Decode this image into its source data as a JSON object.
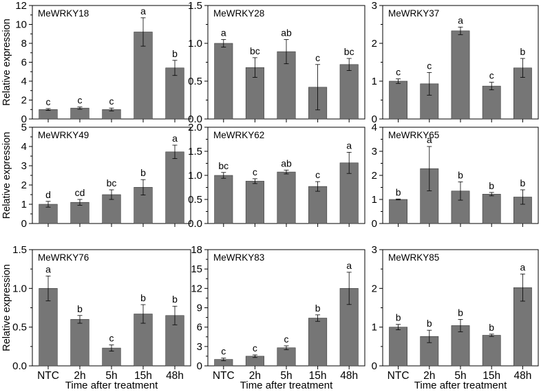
{
  "figure": {
    "ylabel": "Relative expression",
    "xlabel": "Time after treatment",
    "bar_color": "#767676"
  },
  "chart_data": [
    {
      "type": "bar",
      "title": "MeWRKY18",
      "categories": [
        "NTC",
        "2h",
        "5h",
        "15h",
        "48h"
      ],
      "values": [
        1.0,
        1.15,
        1.0,
        9.2,
        5.4
      ],
      "errors": [
        0.1,
        0.12,
        0.15,
        1.5,
        0.8
      ],
      "letters": [
        "c",
        "c",
        "c",
        "a",
        "b"
      ],
      "ylim": [
        0,
        12
      ],
      "yticks": [
        "0",
        "2",
        "4",
        "6",
        "8",
        "10",
        "12"
      ],
      "ylabel": "Relative expression",
      "xlabel": ""
    },
    {
      "type": "bar",
      "title": "MeWRKY28",
      "categories": [
        "NTC",
        "2h",
        "5h",
        "15h",
        "48h"
      ],
      "values": [
        1.0,
        0.68,
        0.89,
        0.42,
        0.72
      ],
      "errors": [
        0.05,
        0.13,
        0.16,
        0.3,
        0.08
      ],
      "letters": [
        "a",
        "bc",
        "ab",
        "c",
        "bc"
      ],
      "ylim": [
        0,
        1.5
      ],
      "yticks": [
        "0.0",
        "0.5",
        "1.0",
        "1.5"
      ],
      "ylabel": "",
      "xlabel": ""
    },
    {
      "type": "bar",
      "title": "MeWRKY37",
      "categories": [
        "NTC",
        "2h",
        "5h",
        "15h",
        "48h"
      ],
      "values": [
        1.0,
        0.93,
        2.33,
        0.87,
        1.35
      ],
      "errors": [
        0.06,
        0.3,
        0.1,
        0.1,
        0.25
      ],
      "letters": [
        "c",
        "c",
        "a",
        "c",
        "b"
      ],
      "ylim": [
        0,
        3
      ],
      "yticks": [
        "0",
        "1",
        "2",
        "3"
      ],
      "ylabel": "",
      "xlabel": ""
    },
    {
      "type": "bar",
      "title": "MeWRKY49",
      "categories": [
        "NTC",
        "2h",
        "5h",
        "15h",
        "48h"
      ],
      "values": [
        1.0,
        1.1,
        1.5,
        1.88,
        3.72
      ],
      "errors": [
        0.15,
        0.15,
        0.25,
        0.4,
        0.35
      ],
      "letters": [
        "d",
        "cd",
        "bc",
        "b",
        "a"
      ],
      "ylim": [
        0,
        5
      ],
      "yticks": [
        "0",
        "1",
        "2",
        "3",
        "4",
        "5"
      ],
      "ylabel": "Relative expression",
      "xlabel": ""
    },
    {
      "type": "bar",
      "title": "MeWRKY62",
      "categories": [
        "NTC",
        "2h",
        "5h",
        "15h",
        "48h"
      ],
      "values": [
        1.0,
        0.88,
        1.07,
        0.77,
        1.26
      ],
      "errors": [
        0.06,
        0.05,
        0.04,
        0.1,
        0.22
      ],
      "letters": [
        "bc",
        "c",
        "ab",
        "c",
        "a"
      ],
      "ylim": [
        0,
        2.0
      ],
      "yticks": [
        "0.0",
        "0.5",
        "1.0",
        "1.5",
        "2.0"
      ],
      "ylabel": "",
      "xlabel": ""
    },
    {
      "type": "bar",
      "title": "MeWRKY65",
      "categories": [
        "NTC",
        "2h",
        "5h",
        "15h",
        "48h"
      ],
      "values": [
        1.0,
        2.28,
        1.35,
        1.22,
        1.1
      ],
      "errors": [
        0.02,
        0.92,
        0.38,
        0.07,
        0.3
      ],
      "letters": [
        "b",
        "a",
        "b",
        "b",
        "b"
      ],
      "ylim": [
        0,
        4
      ],
      "yticks": [
        "0",
        "1",
        "2",
        "3",
        "4"
      ],
      "ylabel": "",
      "xlabel": ""
    },
    {
      "type": "bar",
      "title": "MeWRKY76",
      "categories": [
        "NTC",
        "2h",
        "5h",
        "15h",
        "48h"
      ],
      "values": [
        1.0,
        0.6,
        0.23,
        0.67,
        0.65
      ],
      "errors": [
        0.16,
        0.05,
        0.04,
        0.12,
        0.12
      ],
      "letters": [
        "a",
        "b",
        "c",
        "b",
        "b"
      ],
      "ylim": [
        0,
        1.5
      ],
      "yticks": [
        "0.0",
        "0.5",
        "1.0",
        "1.5"
      ],
      "ylabel": "Relative expression",
      "xlabel": "Time after treatment"
    },
    {
      "type": "bar",
      "title": "MeWRKY83",
      "categories": [
        "NTC",
        "2h",
        "5h",
        "15h",
        "48h"
      ],
      "values": [
        1.0,
        1.5,
        2.8,
        7.4,
        12.0
      ],
      "errors": [
        0.2,
        0.2,
        0.3,
        0.5,
        2.5
      ],
      "letters": [
        "c",
        "c",
        "c",
        "b",
        "a"
      ],
      "ylim": [
        0,
        18
      ],
      "yticks": [
        "0",
        "3",
        "6",
        "9",
        "12",
        "15",
        "18"
      ],
      "ylabel": "",
      "xlabel": "Time after treatment"
    },
    {
      "type": "bar",
      "title": "MeWRKY85",
      "categories": [
        "NTC",
        "2h",
        "5h",
        "15h",
        "48h"
      ],
      "values": [
        1.0,
        0.76,
        1.04,
        0.79,
        2.02
      ],
      "errors": [
        0.07,
        0.16,
        0.16,
        0.03,
        0.35
      ],
      "letters": [
        "b",
        "b",
        "b",
        "b",
        "a"
      ],
      "ylim": [
        0,
        3
      ],
      "yticks": [
        "0",
        "1",
        "2",
        "3"
      ],
      "ylabel": "",
      "xlabel": "Time after treatment"
    }
  ]
}
